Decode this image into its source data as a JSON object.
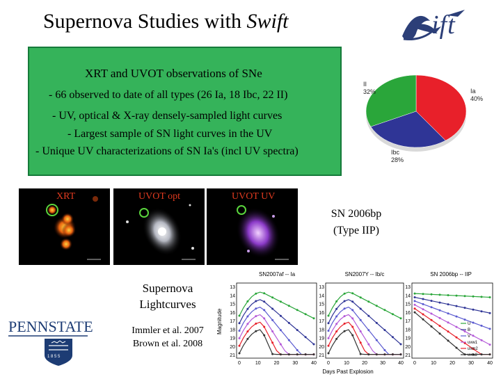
{
  "title": {
    "main": "Supernova Studies with",
    "italic": "Swift"
  },
  "logo": {
    "text": "ift"
  },
  "box": {
    "heading": "XRT and UVOT observations of SNe",
    "bullets": [
      "- 66 observed to date of all types (26 Ia, 18 Ibc, 22 II)",
      "- UV, optical & X-ray densely-sampled light curves",
      "- Largest sample of SN light curves in the UV",
      "- Unique UV characterizations of SN Ia's (incl UV spectra)"
    ]
  },
  "pie": {
    "slices": [
      {
        "name": "Ia",
        "pct": "40%",
        "value": 40,
        "color": "#e8202a"
      },
      {
        "name": "Ibc",
        "pct": "28%",
        "value": 28,
        "color": "#2f3596"
      },
      {
        "name": "II",
        "pct": "32%",
        "value": 32,
        "color": "#2aa63a"
      }
    ]
  },
  "panels": [
    {
      "label": "XRT"
    },
    {
      "label": "UVOT opt"
    },
    {
      "label": "UVOT UV"
    }
  ],
  "sn_label": {
    "line1": "SN 2006bp",
    "line2": "(Type IIP)"
  },
  "lightcurves_title": {
    "line1": "Supernova",
    "line2": "Lightcurves"
  },
  "references": {
    "line1": "Immler et al. 2007",
    "line2": "Brown et al. 2008"
  },
  "pennstate": {
    "name": "PENNSTATE",
    "year": "1 8 5 5"
  },
  "lightcurve_panels": {
    "titles": [
      "SN2007af -- Ia",
      "SN2007Y -- Ib/c",
      "SN 2006bp -- IIP"
    ],
    "ylabel": "Magnitude",
    "xlabel": "Days Past Explosion",
    "yticks": [
      "13",
      "14",
      "15",
      "16",
      "17",
      "18",
      "19",
      "20",
      "21"
    ],
    "xticks": [
      "0",
      "10",
      "20",
      "30",
      "40"
    ],
    "legend": [
      "U",
      "B",
      "V",
      "uvw1",
      "uvm2",
      "uvw2"
    ]
  }
}
